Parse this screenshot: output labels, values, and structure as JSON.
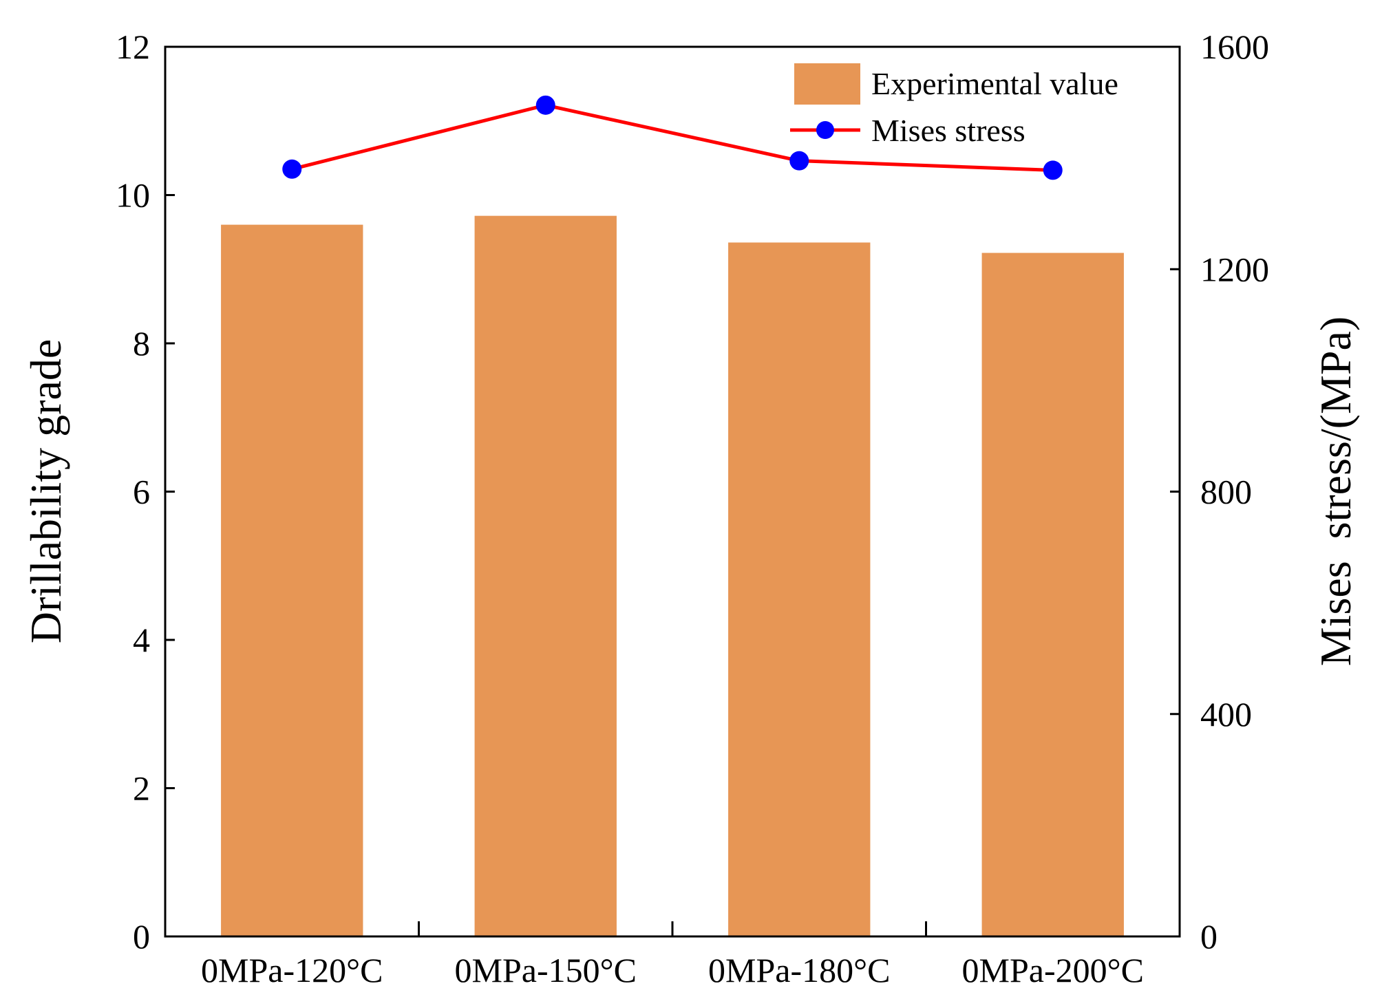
{
  "chart_data": {
    "type": "bar+line",
    "categories": [
      "0MPa-120°C",
      "0MPa-150°C",
      "0MPa-180°C",
      "0MPa-200°C"
    ],
    "series": [
      {
        "name": "Experimental value",
        "kind": "bar",
        "axis": "left",
        "color": "#E79655",
        "values": [
          9.6,
          9.72,
          9.36,
          9.22
        ]
      },
      {
        "name": "Mises stress",
        "kind": "line",
        "axis": "right",
        "line_color": "#FF0000",
        "marker_color": "#0000FF",
        "values": [
          1380,
          1495,
          1395,
          1378
        ]
      }
    ],
    "ylabel": "Drillability grade",
    "y2label": "Mises  stress/(MPa)",
    "xlabel": "",
    "ylim": [
      0,
      12
    ],
    "y2lim": [
      0,
      1600
    ],
    "yticks": [
      "0",
      "2",
      "4",
      "6",
      "8",
      "10",
      "12"
    ],
    "y2ticks": [
      "0",
      "400",
      "800",
      "1200",
      "1600"
    ],
    "legend_position": "top-right",
    "grid": false
  }
}
